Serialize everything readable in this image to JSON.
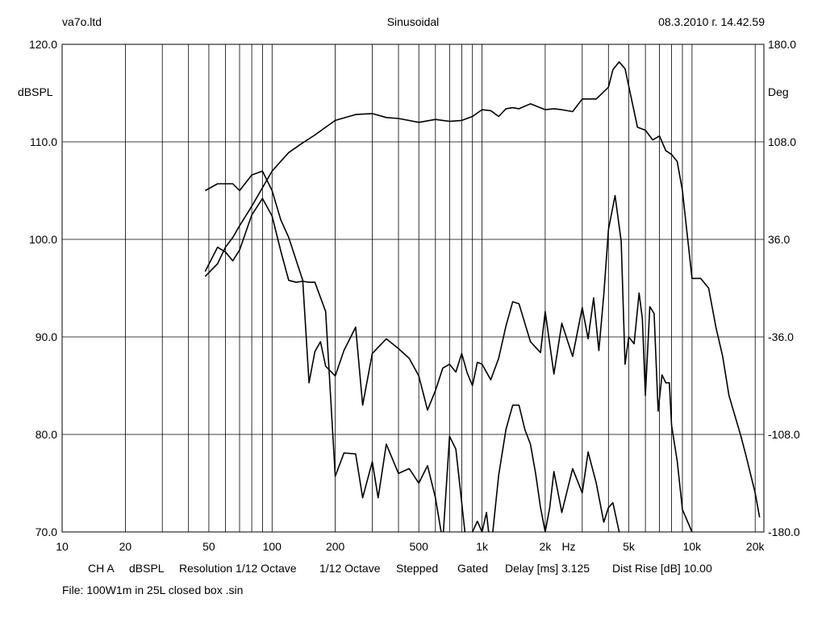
{
  "header": {
    "company": "va7o.ltd",
    "title": "Sinusoidal",
    "datetime": "08.3.2010 г. 14.42.59"
  },
  "footer": {
    "channel": "CH A",
    "unit": "dBSPL",
    "resolution": "Resolution 1/12 Octave",
    "octave": "1/12 Octave",
    "mode": "Stepped",
    "gating": "Gated",
    "delay": "Delay [ms] 3.125",
    "dist_rise": "Dist Rise [dB] 10.00",
    "file": "File: 100W1m in 25L closed box .sin"
  },
  "chart_data": {
    "type": "line",
    "xlabel": "Hz",
    "ylabel": "dBSPL",
    "y2label": "Deg",
    "x_scale": "log",
    "xlim": [
      10,
      22000
    ],
    "ylim": [
      70,
      120
    ],
    "y2lim": [
      -180,
      180
    ],
    "grid": true,
    "legend": "none",
    "x_ticks": [
      {
        "value": 10,
        "label": "10"
      },
      {
        "value": 20,
        "label": "20"
      },
      {
        "value": 50,
        "label": "50"
      },
      {
        "value": 100,
        "label": "100"
      },
      {
        "value": 200,
        "label": "200"
      },
      {
        "value": 500,
        "label": "500"
      },
      {
        "value": 1000,
        "label": "1k"
      },
      {
        "value": 2000,
        "label": "2k"
      },
      {
        "value": 5000,
        "label": "5k"
      },
      {
        "value": 10000,
        "label": "10k"
      },
      {
        "value": 20000,
        "label": "20k"
      }
    ],
    "y_ticks": [
      {
        "value": 120,
        "label": "120.0"
      },
      {
        "value": 110,
        "label": "110.0"
      },
      {
        "value": 100,
        "label": "100.0"
      },
      {
        "value": 90,
        "label": "90.0"
      },
      {
        "value": 80,
        "label": "80.0"
      },
      {
        "value": 70,
        "label": "70.0"
      }
    ],
    "y2_ticks": [
      {
        "value": 180,
        "label": "180.0"
      },
      {
        "value": 108,
        "label": "108.0"
      },
      {
        "value": 36,
        "label": "36.0"
      },
      {
        "value": -36,
        "label": "-36.0"
      },
      {
        "value": -108,
        "label": "-108.0"
      },
      {
        "value": -180,
        "label": "-180.0"
      }
    ],
    "series": [
      {
        "x": [
          48,
          55,
          60,
          65,
          70,
          80,
          90,
          100,
          110,
          120,
          140,
          160,
          180,
          200,
          250,
          300,
          350,
          400,
          500,
          600,
          700,
          800,
          900,
          1000,
          1100,
          1200,
          1300,
          1400,
          1500,
          1700,
          2000,
          2200,
          2400,
          2700,
          3000,
          3500,
          4000,
          4200,
          4500,
          4800,
          5000,
          5500,
          6000,
          6500,
          7000,
          7500,
          8000,
          8500,
          9000,
          10000,
          11000,
          12000,
          13000,
          14000,
          15000,
          17000,
          18000,
          20000,
          21000
        ],
        "y": [
          96.2,
          97.5,
          99.2,
          100.2,
          101.4,
          103.4,
          105.3,
          107.0,
          108.0,
          108.9,
          109.9,
          110.7,
          111.5,
          112.2,
          112.8,
          112.9,
          112.5,
          112.4,
          112.0,
          112.3,
          112.1,
          112.2,
          112.6,
          113.3,
          113.2,
          112.6,
          113.4,
          113.5,
          113.4,
          113.9,
          113.3,
          113.4,
          113.3,
          113.1,
          114.4,
          114.4,
          115.6,
          117.4,
          118.2,
          117.5,
          115.7,
          111.5,
          111.2,
          110.2,
          110.6,
          109.1,
          108.7,
          108.0,
          105.0,
          96.0,
          96.0,
          95.0,
          91.0,
          88.0,
          84.0,
          80.0,
          78.0,
          74.0,
          71.5
        ]
      },
      {
        "x": [
          48,
          55,
          60,
          65,
          70,
          80,
          90,
          100,
          110,
          120,
          140,
          150,
          160,
          170,
          180,
          200,
          220,
          250,
          270,
          300,
          350,
          400,
          450,
          500,
          550,
          600,
          650,
          700,
          750,
          800,
          850,
          900,
          950,
          1000,
          1100,
          1200,
          1300,
          1400,
          1500,
          1700,
          1900,
          2000,
          2200,
          2400,
          2700,
          3000,
          3200,
          3400,
          3600,
          3800,
          4000,
          4300,
          4600,
          4800,
          5000,
          5300,
          5600,
          5800,
          6000,
          6300,
          6600,
          6900,
          7200,
          7500,
          7800,
          8000,
          8500,
          9000,
          10000
        ],
        "y": [
          105.0,
          105.7,
          105.7,
          105.7,
          105.0,
          106.6,
          107.0,
          105.0,
          102.0,
          100.2,
          95.8,
          85.3,
          88.5,
          89.5,
          87.0,
          86.0,
          88.6,
          91.0,
          83.0,
          88.3,
          89.8,
          88.8,
          87.8,
          86.0,
          82.5,
          84.5,
          86.8,
          87.2,
          86.4,
          88.3,
          86.3,
          85.0,
          87.4,
          87.2,
          85.6,
          87.8,
          91.1,
          93.6,
          93.4,
          89.5,
          88.4,
          92.6,
          86.2,
          91.4,
          88.0,
          93.0,
          89.8,
          94.0,
          88.6,
          94.3,
          101.0,
          104.5,
          99.8,
          87.2,
          90.0,
          89.3,
          94.5,
          91.9,
          84.0,
          93.1,
          92.4,
          82.4,
          86.1,
          85.3,
          85.3,
          80.9,
          77.3,
          72.3,
          70.0
        ]
      },
      {
        "x": [
          48,
          55,
          60,
          65,
          70,
          80,
          90,
          100,
          110,
          120,
          130,
          140,
          150,
          160,
          180,
          200,
          220,
          250,
          270,
          300,
          320,
          350,
          400,
          450,
          500,
          550,
          600,
          650,
          700,
          750,
          800,
          850,
          900,
          950,
          1000,
          1050,
          1100,
          1200,
          1300,
          1400,
          1500,
          1600,
          1700,
          1800,
          1900,
          2000,
          2100,
          2200,
          2400,
          2700,
          3000,
          3200,
          3500,
          3800,
          4000,
          4200,
          4500,
          5000
        ],
        "y": [
          96.7,
          99.2,
          98.7,
          97.8,
          98.9,
          102.5,
          104.2,
          102.4,
          98.8,
          95.8,
          95.6,
          95.7,
          95.6,
          95.6,
          92.6,
          75.7,
          78.1,
          78.0,
          73.5,
          77.2,
          73.5,
          79.0,
          76.0,
          76.5,
          75.0,
          76.8,
          73.5,
          69.0,
          79.8,
          78.5,
          73.0,
          67.8,
          70.0,
          71.1,
          70.0,
          72.0,
          68.0,
          75.8,
          80.5,
          83.0,
          83.0,
          80.5,
          79.0,
          76.0,
          72.5,
          70.0,
          72.5,
          76.2,
          72.0,
          76.5,
          74.0,
          78.2,
          75.0,
          71.0,
          72.5,
          73.0,
          70.0,
          69.0
        ]
      }
    ]
  }
}
